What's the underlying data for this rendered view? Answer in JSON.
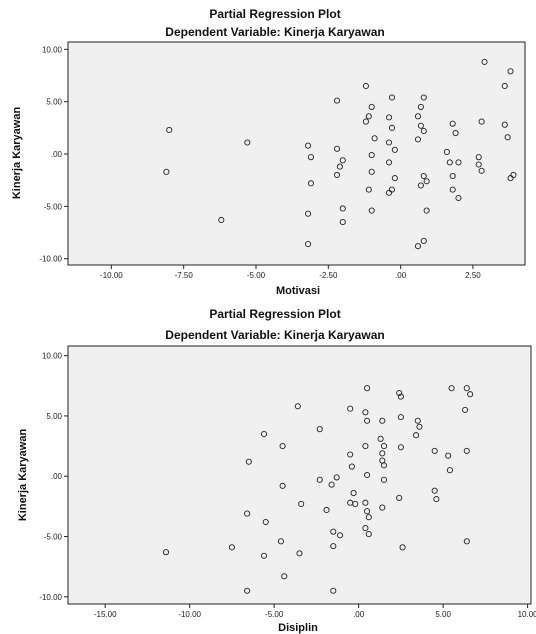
{
  "chart_data": [
    {
      "type": "scatter",
      "title": "Partial Regression Plot",
      "subtitle": "Dependent Variable: Kinerja Karyawan",
      "xlabel": "Motivasi",
      "ylabel": "Kinerja Karyawan",
      "xlim": [
        -11.5,
        4.3
      ],
      "ylim": [
        -10.6,
        10.7
      ],
      "x_ticks": [
        -10,
        -7.5,
        -5,
        -2.5,
        0,
        2.5
      ],
      "x_tick_labels": [
        "-10.00",
        "-7.50",
        "-5.00",
        "-2.50",
        ".00",
        "2.50"
      ],
      "y_ticks": [
        -10,
        -5,
        0,
        5,
        10
      ],
      "y_tick_labels": [
        "-10.00",
        "-5.00",
        ".00",
        "5.00",
        "10.00"
      ],
      "points": [
        [
          -8.0,
          2.3
        ],
        [
          -8.1,
          -1.7
        ],
        [
          -6.2,
          -6.3
        ],
        [
          -5.3,
          1.1
        ],
        [
          -3.2,
          0.8
        ],
        [
          -3.1,
          -0.3
        ],
        [
          -3.1,
          -2.8
        ],
        [
          -3.2,
          -5.7
        ],
        [
          -3.2,
          -8.6
        ],
        [
          -2.2,
          5.1
        ],
        [
          -2.2,
          0.5
        ],
        [
          -2.0,
          -0.6
        ],
        [
          -2.1,
          -1.2
        ],
        [
          -2.2,
          -2.0
        ],
        [
          -2.0,
          -5.2
        ],
        [
          -2.0,
          -6.5
        ],
        [
          -1.2,
          6.5
        ],
        [
          -1.1,
          3.6
        ],
        [
          -1.2,
          3.1
        ],
        [
          -1.0,
          4.5
        ],
        [
          -0.9,
          1.5
        ],
        [
          -1.0,
          -0.1
        ],
        [
          -1.0,
          -1.7
        ],
        [
          -1.1,
          -3.4
        ],
        [
          -1.0,
          -5.4
        ],
        [
          -0.3,
          5.4
        ],
        [
          -0.4,
          3.5
        ],
        [
          -0.3,
          2.5
        ],
        [
          -0.4,
          1.1
        ],
        [
          -0.2,
          0.4
        ],
        [
          -0.4,
          -0.8
        ],
        [
          -0.2,
          -2.3
        ],
        [
          -0.3,
          -3.4
        ],
        [
          -0.4,
          -3.7
        ],
        [
          0.8,
          5.4
        ],
        [
          0.7,
          4.5
        ],
        [
          0.6,
          3.6
        ],
        [
          0.7,
          2.7
        ],
        [
          0.8,
          2.2
        ],
        [
          0.6,
          1.4
        ],
        [
          0.8,
          -2.1
        ],
        [
          0.7,
          -3.0
        ],
        [
          0.9,
          -2.6
        ],
        [
          0.9,
          -5.4
        ],
        [
          0.8,
          -8.3
        ],
        [
          0.6,
          -8.8
        ],
        [
          1.8,
          2.9
        ],
        [
          1.9,
          2.0
        ],
        [
          1.6,
          0.2
        ],
        [
          1.7,
          -0.8
        ],
        [
          2.0,
          -0.8
        ],
        [
          1.8,
          -2.1
        ],
        [
          1.8,
          -3.4
        ],
        [
          2.0,
          -4.2
        ],
        [
          2.9,
          8.8
        ],
        [
          2.8,
          3.1
        ],
        [
          2.7,
          -0.3
        ],
        [
          2.7,
          -1.0
        ],
        [
          2.8,
          -1.6
        ],
        [
          3.6,
          2.8
        ],
        [
          3.6,
          6.5
        ],
        [
          3.8,
          7.9
        ],
        [
          3.7,
          1.6
        ],
        [
          3.8,
          -2.3
        ],
        [
          3.9,
          -2.0
        ]
      ]
    },
    {
      "type": "scatter",
      "title": "Partial Regression Plot",
      "subtitle": "Dependent Variable: Kinerja Karyawan",
      "xlabel": "Disiplin",
      "ylabel": "Kinerja Karyawan",
      "xlim": [
        -17.2,
        10.2
      ],
      "ylim": [
        -10.6,
        10.8
      ],
      "x_ticks": [
        -15,
        -10,
        -5,
        0,
        5,
        10
      ],
      "x_tick_labels": [
        "-15.00",
        "-10.00",
        "-5.00",
        ".00",
        "5.00",
        "10.00"
      ],
      "y_ticks": [
        -10,
        -5,
        0,
        5,
        10
      ],
      "y_tick_labels": [
        "-10.00",
        "-5.00",
        ".00",
        "5.00",
        "10.00"
      ],
      "points": [
        [
          -11.4,
          -6.3
        ],
        [
          -7.5,
          -5.9
        ],
        [
          -6.5,
          1.2
        ],
        [
          -6.6,
          -3.1
        ],
        [
          -6.6,
          -9.5
        ],
        [
          -5.6,
          3.5
        ],
        [
          -5.5,
          -3.8
        ],
        [
          -5.6,
          -6.6
        ],
        [
          -4.5,
          2.5
        ],
        [
          -4.5,
          -0.8
        ],
        [
          -4.6,
          -5.4
        ],
        [
          -4.4,
          -8.3
        ],
        [
          -3.6,
          5.8
        ],
        [
          -3.4,
          -2.3
        ],
        [
          -3.5,
          -6.4
        ],
        [
          -2.3,
          3.9
        ],
        [
          -2.3,
          -0.3
        ],
        [
          -1.9,
          -2.8
        ],
        [
          -1.6,
          -0.7
        ],
        [
          -1.5,
          -4.6
        ],
        [
          -1.5,
          -5.8
        ],
        [
          -1.5,
          -9.5
        ],
        [
          -1.3,
          -0.1
        ],
        [
          -1.1,
          -4.9
        ],
        [
          -0.5,
          5.6
        ],
        [
          -0.5,
          1.8
        ],
        [
          -0.4,
          0.8
        ],
        [
          -0.5,
          -2.2
        ],
        [
          -0.3,
          -1.4
        ],
        [
          -0.2,
          -2.3
        ],
        [
          0.4,
          5.3
        ],
        [
          0.5,
          4.6
        ],
        [
          0.4,
          2.5
        ],
        [
          0.5,
          0.1
        ],
        [
          0.4,
          -2.2
        ],
        [
          0.5,
          -2.9
        ],
        [
          0.6,
          -3.4
        ],
        [
          0.4,
          -4.3
        ],
        [
          0.6,
          -4.8
        ],
        [
          0.5,
          7.3
        ],
        [
          1.4,
          4.6
        ],
        [
          1.3,
          3.1
        ],
        [
          1.5,
          2.5
        ],
        [
          1.4,
          1.9
        ],
        [
          1.4,
          1.3
        ],
        [
          1.5,
          0.9
        ],
        [
          1.5,
          -0.3
        ],
        [
          1.4,
          -2.6
        ],
        [
          2.4,
          6.9
        ],
        [
          2.5,
          6.6
        ],
        [
          2.5,
          4.9
        ],
        [
          2.5,
          2.4
        ],
        [
          2.4,
          -1.8
        ],
        [
          2.6,
          -5.9
        ],
        [
          3.4,
          3.4
        ],
        [
          3.5,
          4.6
        ],
        [
          3.6,
          4.1
        ],
        [
          4.5,
          2.1
        ],
        [
          4.5,
          -1.2
        ],
        [
          4.6,
          -1.9
        ],
        [
          5.3,
          1.7
        ],
        [
          5.4,
          0.5
        ],
        [
          5.5,
          7.3
        ],
        [
          6.4,
          7.3
        ],
        [
          6.6,
          6.8
        ],
        [
          6.3,
          5.5
        ],
        [
          6.4,
          2.1
        ],
        [
          6.4,
          -5.4
        ]
      ]
    }
  ]
}
